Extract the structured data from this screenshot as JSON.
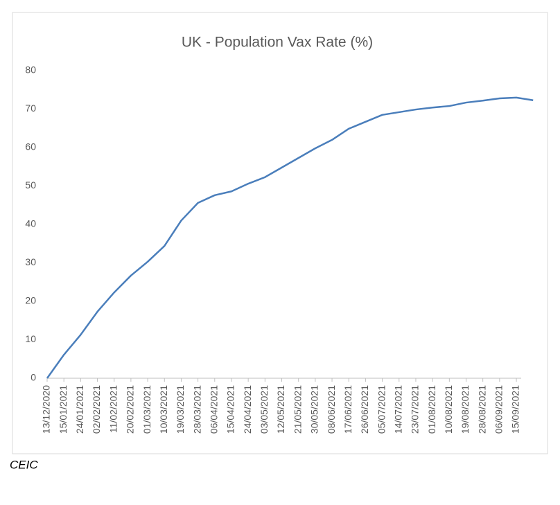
{
  "chart_data": {
    "type": "line",
    "title": "UK - Population Vax Rate (%)",
    "categories": [
      "13/12/2020",
      "15/01/2021",
      "24/01/2021",
      "02/02/2021",
      "11/02/2021",
      "20/02/2021",
      "01/03/2021",
      "10/03/2021",
      "19/03/2021",
      "28/03/2021",
      "06/04/2021",
      "15/04/2021",
      "24/04/2021",
      "03/05/2021",
      "12/05/2021",
      "21/05/2021",
      "30/05/2021",
      "08/06/2021",
      "17/06/2021",
      "26/06/2021",
      "05/07/2021",
      "14/07/2021",
      "23/07/2021",
      "01/08/2021",
      "10/08/2021",
      "19/08/2021",
      "28/08/2021",
      "06/09/2021",
      "15/09/2021",
      null
    ],
    "values": [
      0,
      6.1,
      11.3,
      17.3,
      22.3,
      26.7,
      30.3,
      34.4,
      41,
      45.6,
      47.6,
      48.6,
      50.6,
      52.3,
      54.8,
      57.3,
      59.8,
      62,
      64.9,
      66.7,
      68.5,
      69.2,
      69.9,
      70.4,
      70.8,
      71.7,
      72.2,
      72.8,
      73,
      72.3
    ],
    "color": "#4a7ebb",
    "ylim": [
      0,
      80
    ],
    "yticks": [
      0,
      10,
      20,
      30,
      40,
      50,
      60,
      70,
      80
    ],
    "grid": false,
    "source": "CEIC"
  }
}
